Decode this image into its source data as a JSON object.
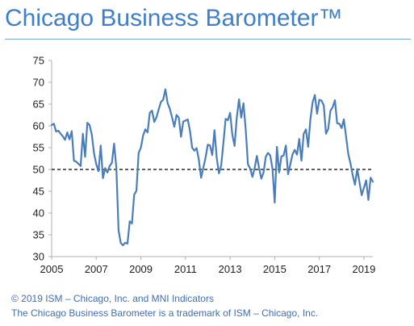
{
  "title": "Chicago Business Barometer™",
  "footer": {
    "line1": "© 2019 ISM – Chicago, Inc. and MNI Indicators",
    "line2": "The Chicago Business Barometer is a trademark of ISM – Chicago, Inc."
  },
  "colors": {
    "series": "#4a7ebb",
    "reference_line": "#000000",
    "title": "#3f7fc8",
    "footer": "#3f6fb5"
  },
  "chart_data": {
    "type": "line",
    "title": "Chicago Business Barometer™",
    "xlabel": "",
    "ylabel": "",
    "xlim": [
      2005,
      2019.4
    ],
    "ylim": [
      30,
      75
    ],
    "yticks": [
      30,
      35,
      40,
      45,
      50,
      55,
      60,
      65,
      70,
      75
    ],
    "xticks": [
      2005,
      2007,
      2009,
      2011,
      2013,
      2015,
      2017,
      2019
    ],
    "reference_line": {
      "y": 50,
      "style": "dashed"
    },
    "grid": false,
    "legend": "none",
    "series": [
      {
        "x": [
          2005.0,
          2005.1,
          2005.2,
          2005.3,
          2005.4,
          2005.5,
          2005.6,
          2005.7,
          2005.8,
          2005.9,
          2006.0,
          2006.1,
          2006.2,
          2006.3,
          2006.4,
          2006.5,
          2006.6,
          2006.7,
          2006.8,
          2006.9,
          2007.0,
          2007.1,
          2007.2,
          2007.3,
          2007.4,
          2007.5,
          2007.6,
          2007.7,
          2007.8,
          2007.9,
          2008.0,
          2008.1,
          2008.2,
          2008.3,
          2008.4,
          2008.5,
          2008.6,
          2008.7,
          2008.8,
          2008.9,
          2009.0,
          2009.1,
          2009.2,
          2009.3,
          2009.4,
          2009.5,
          2009.6,
          2009.7,
          2009.8,
          2009.9,
          2010.0,
          2010.1,
          2010.2,
          2010.3,
          2010.4,
          2010.5,
          2010.6,
          2010.7,
          2010.8,
          2010.9,
          2011.0,
          2011.1,
          2011.2,
          2011.3,
          2011.4,
          2011.5,
          2011.6,
          2011.7,
          2011.8,
          2011.9,
          2012.0,
          2012.1,
          2012.2,
          2012.3,
          2012.4,
          2012.5,
          2012.6,
          2012.7,
          2012.8,
          2012.9,
          2013.0,
          2013.1,
          2013.2,
          2013.3,
          2013.4,
          2013.5,
          2013.6,
          2013.7,
          2013.8,
          2013.9,
          2014.0,
          2014.1,
          2014.2,
          2014.3,
          2014.4,
          2014.5,
          2014.6,
          2014.7,
          2014.8,
          2014.9,
          2015.0,
          2015.1,
          2015.2,
          2015.3,
          2015.4,
          2015.5,
          2015.6,
          2015.7,
          2015.8,
          2015.9,
          2016.0,
          2016.1,
          2016.2,
          2016.3,
          2016.4,
          2016.5,
          2016.6,
          2016.7,
          2016.8,
          2016.9,
          2017.0,
          2017.1,
          2017.2,
          2017.3,
          2017.4,
          2017.5,
          2017.6,
          2017.7,
          2017.8,
          2017.9,
          2018.0,
          2018.1,
          2018.2,
          2018.3,
          2018.4,
          2018.5,
          2018.6,
          2018.7,
          2018.8,
          2018.9,
          2019.0,
          2019.1,
          2019.2,
          2019.3,
          2019.4
        ],
        "values": [
          60.2,
          60.5,
          58.7,
          58.9,
          58.2,
          57.6,
          56.8,
          58.5,
          56.9,
          58.8,
          52.0,
          51.8,
          51.3,
          50.8,
          58.2,
          52.9,
          60.7,
          60.2,
          58.0,
          53.7,
          51.2,
          49.6,
          55.5,
          48.0,
          50.3,
          49.3,
          50.8,
          51.5,
          55.9,
          50.5,
          36.0,
          33.1,
          32.6,
          33.2,
          33.0,
          38.1,
          37.6,
          44.2,
          45.1,
          53.8,
          55.0,
          57.8,
          59.2,
          58.5,
          63.0,
          63.5,
          60.9,
          62.0,
          63.8,
          65.5,
          66.0,
          68.4,
          65.2,
          63.9,
          61.9,
          59.8,
          62.5,
          61.9,
          57.5,
          61.0,
          61.2,
          61.5,
          58.9,
          55.0,
          54.3,
          54.9,
          52.2,
          48.1,
          50.4,
          52.7,
          55.7,
          55.5,
          53.3,
          59.0,
          52.7,
          49.1,
          50.9,
          56.1,
          61.6,
          61.3,
          63.0,
          58.0,
          55.4,
          61.9,
          66.1,
          61.9,
          65.2,
          59.2,
          51.2,
          50.2,
          48.3,
          50.3,
          53.1,
          50.3,
          47.9,
          49.3,
          52.9,
          53.8,
          53.2,
          50.2,
          42.4,
          55.2,
          49.3,
          53.0,
          53.2,
          55.5,
          48.9,
          51.2,
          53.5,
          54.5,
          53.4,
          57.0,
          52.0,
          58.2,
          59.2,
          55.2,
          61.5,
          65.4,
          67.1,
          62.8,
          66.0,
          65.8,
          64.7,
          58.2,
          59.3,
          63.5,
          64.3,
          65.9,
          60.6,
          60.5,
          59.5,
          61.5,
          57.5,
          53.5,
          51.3,
          48.6,
          46.5,
          50.1,
          47.1,
          44.1,
          45.8,
          47.5,
          43.0,
          48.1,
          47.2
        ]
      }
    ]
  }
}
